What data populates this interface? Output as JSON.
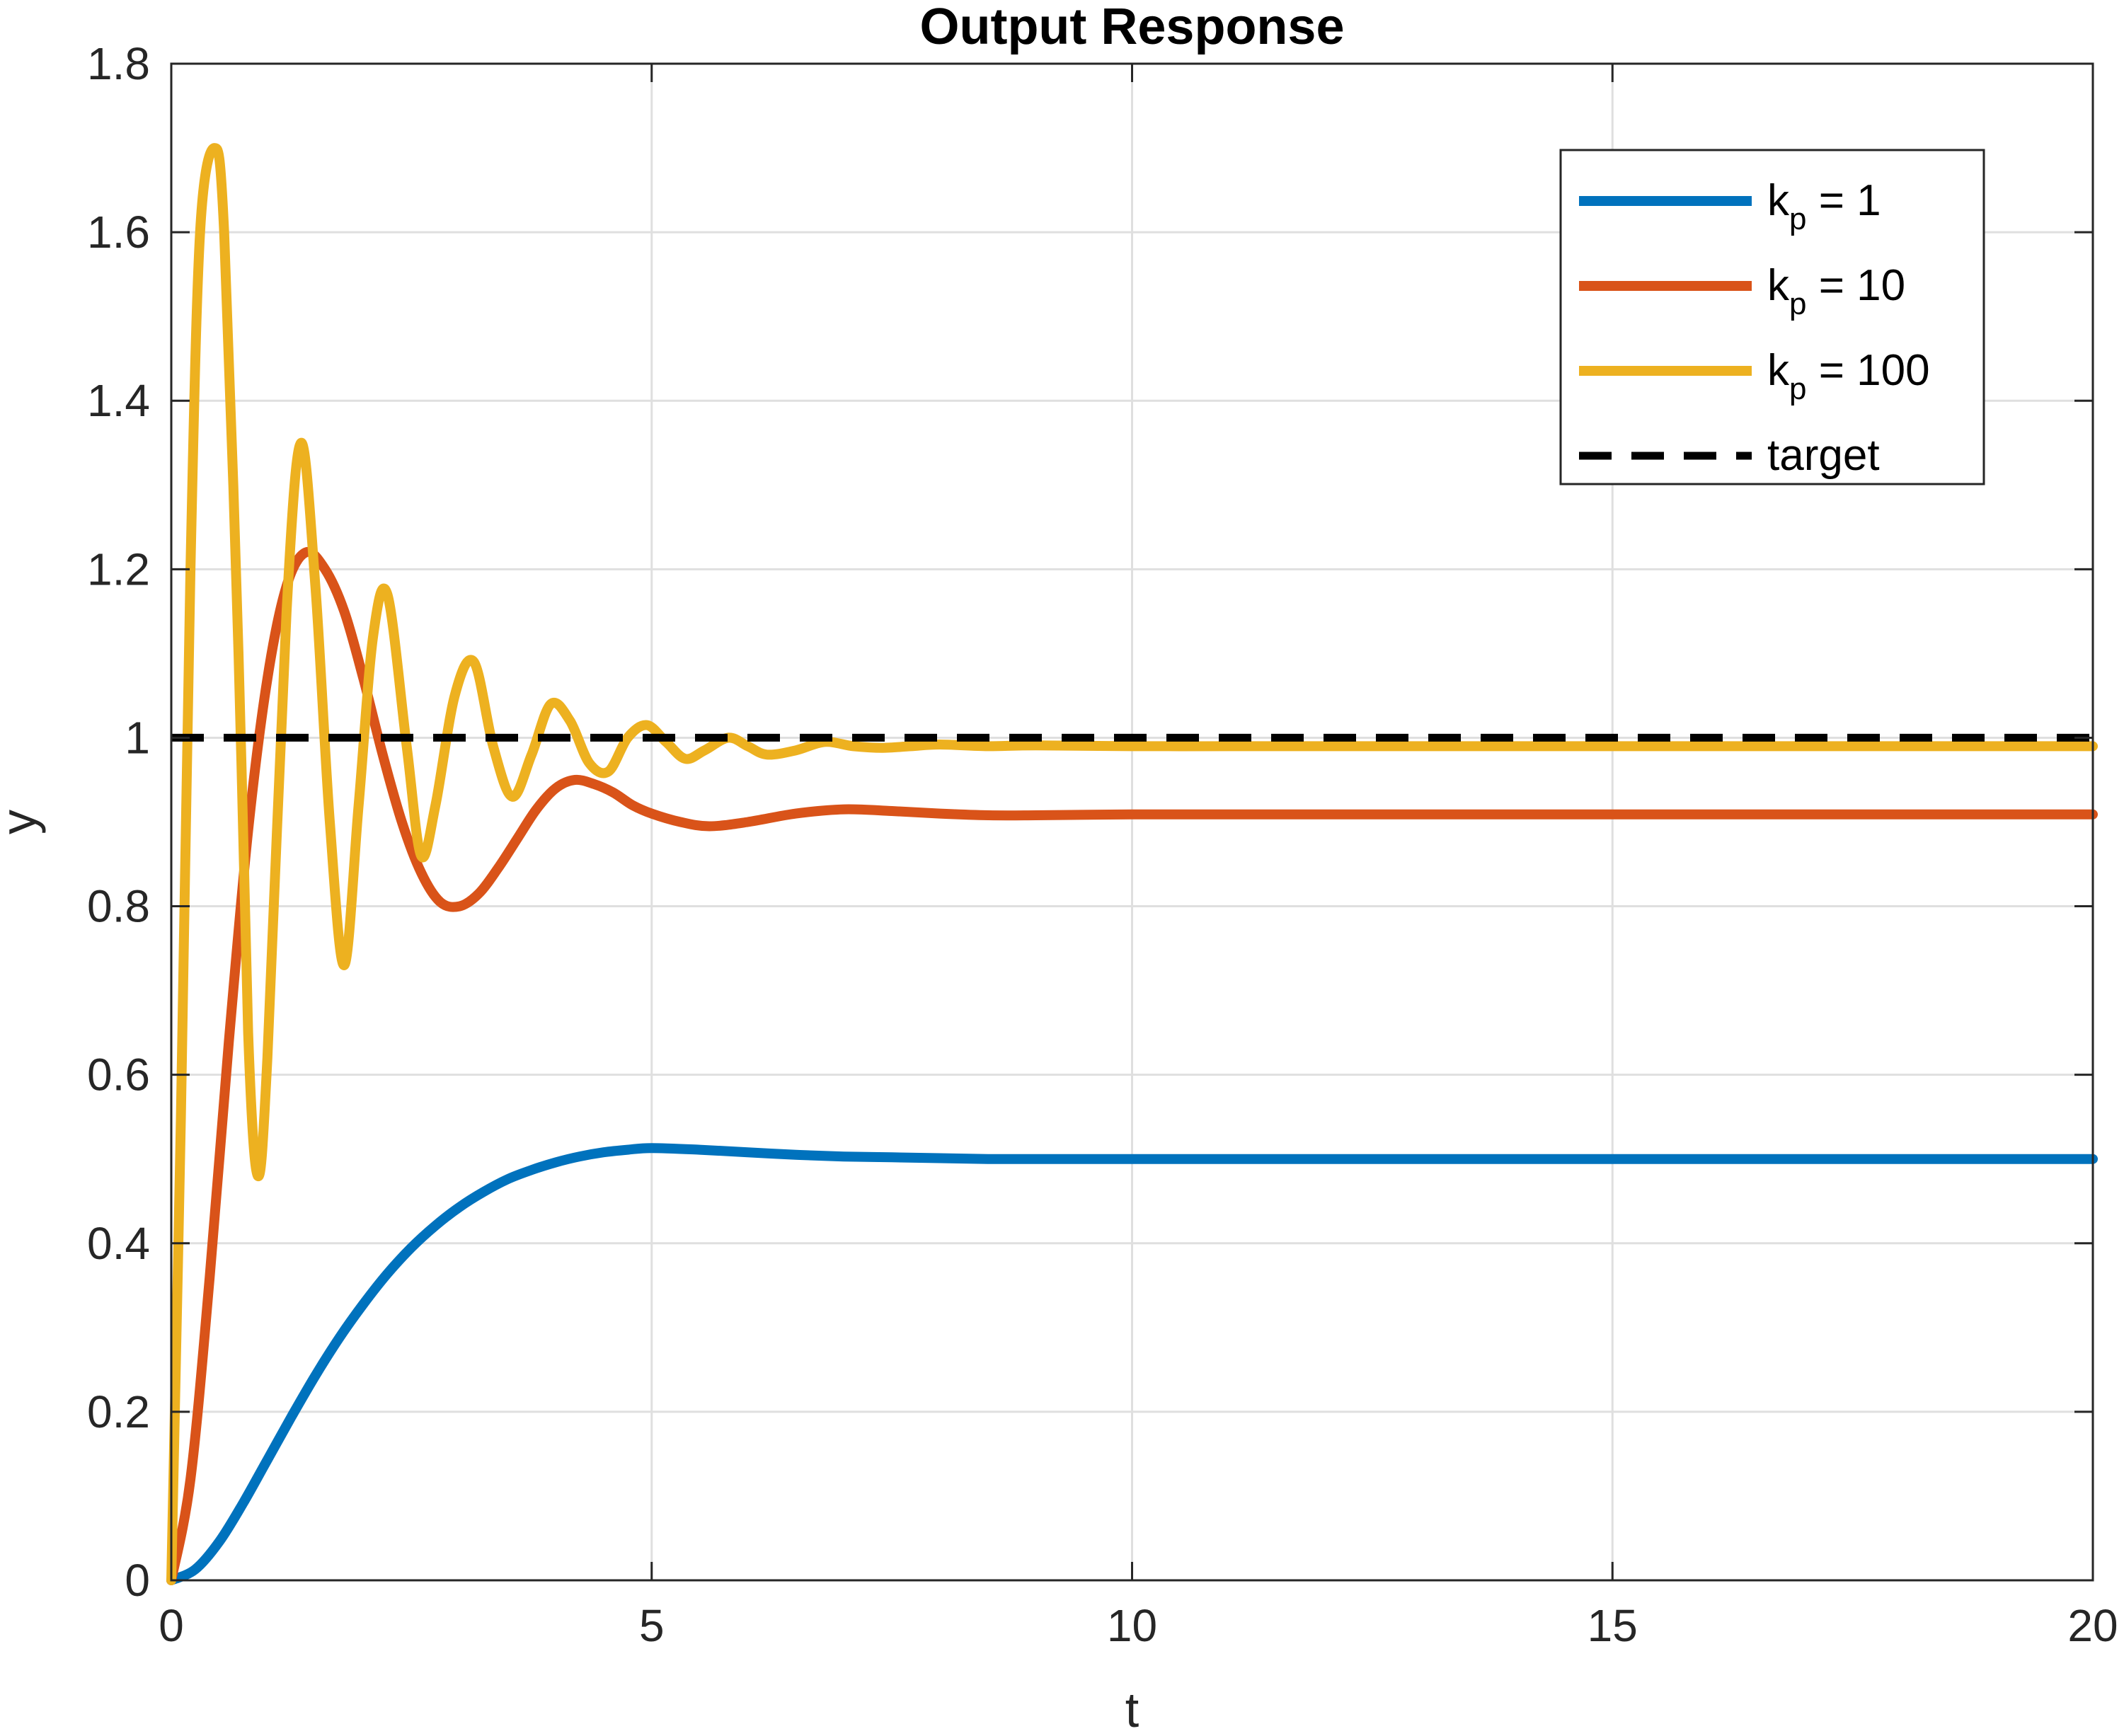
{
  "chart_data": {
    "type": "line",
    "title": "Output Response",
    "xlabel": "t",
    "ylabel": "y",
    "xlim": [
      0,
      20
    ],
    "ylim": [
      0,
      1.8
    ],
    "xticks": [
      0,
      5,
      10,
      15,
      20
    ],
    "xtick_labels": [
      "0",
      "5",
      "10",
      "15",
      "20"
    ],
    "yticks": [
      0,
      0.2,
      0.4,
      0.6,
      0.8,
      1.0,
      1.2,
      1.4,
      1.6,
      1.8
    ],
    "ytick_labels": [
      "0",
      "0.2",
      "0.4",
      "0.6",
      "0.8",
      "1",
      "1.2",
      "1.4",
      "1.6",
      "1.8"
    ],
    "grid": true,
    "legend_position": "top-right",
    "series": [
      {
        "legend_main": "k",
        "legend_sub": "p",
        "legend_rest": " = 1",
        "color": "#0072BD",
        "style": "solid",
        "x": [
          0,
          0.25,
          0.5,
          0.75,
          1.0,
          1.25,
          1.5,
          1.75,
          2.0,
          2.25,
          2.5,
          2.75,
          3.0,
          3.25,
          3.5,
          3.75,
          4.0,
          4.25,
          4.5,
          4.75,
          5.0,
          5.5,
          6.0,
          6.5,
          7.0,
          7.5,
          8.0,
          8.5,
          9.0,
          10.0,
          11.0,
          12.0,
          13.0,
          14.0,
          15.0,
          16.0,
          17.0,
          18.0,
          19.0,
          20.0
        ],
        "y": [
          0,
          0.013,
          0.046,
          0.092,
          0.143,
          0.194,
          0.243,
          0.288,
          0.328,
          0.364,
          0.395,
          0.421,
          0.443,
          0.461,
          0.476,
          0.487,
          0.496,
          0.503,
          0.508,
          0.511,
          0.513,
          0.511,
          0.508,
          0.505,
          0.503,
          0.502,
          0.501,
          0.5,
          0.5,
          0.5,
          0.5,
          0.5,
          0.5,
          0.5,
          0.5,
          0.5,
          0.5,
          0.5,
          0.5,
          0.5
        ]
      },
      {
        "legend_main": "k",
        "legend_sub": "p",
        "legend_rest": " = 10",
        "color": "#D95319",
        "style": "solid",
        "x": [
          0,
          0.2,
          0.4,
          0.6,
          0.8,
          1.0,
          1.2,
          1.4,
          1.6,
          1.8,
          2.0,
          2.2,
          2.4,
          2.6,
          2.8,
          3.0,
          3.2,
          3.4,
          3.6,
          3.8,
          4.0,
          4.2,
          4.4,
          4.6,
          4.8,
          5.0,
          5.3,
          5.6,
          6.0,
          6.5,
          7.0,
          7.5,
          8.0,
          8.5,
          9.0,
          10.0,
          11.0,
          12.0,
          14.0,
          16.0,
          18.0,
          20.0
        ],
        "y": [
          0,
          0.12,
          0.36,
          0.64,
          0.89,
          1.07,
          1.18,
          1.22,
          1.2,
          1.15,
          1.07,
          0.98,
          0.9,
          0.84,
          0.805,
          0.8,
          0.815,
          0.845,
          0.88,
          0.915,
          0.94,
          0.95,
          0.945,
          0.935,
          0.92,
          0.91,
          0.9,
          0.895,
          0.9,
          0.91,
          0.915,
          0.913,
          0.91,
          0.908,
          0.908,
          0.909,
          0.909,
          0.909,
          0.909,
          0.909,
          0.909,
          0.909
        ]
      },
      {
        "legend_main": "k",
        "legend_sub": "p",
        "legend_rest": " = 100",
        "color": "#EDB120",
        "style": "solid",
        "x": [
          0,
          0.1,
          0.2,
          0.3,
          0.45,
          0.55,
          0.7,
          0.8,
          0.9,
          1.0,
          1.2,
          1.35,
          1.5,
          1.65,
          1.8,
          1.95,
          2.1,
          2.25,
          2.45,
          2.6,
          2.75,
          2.95,
          3.15,
          3.35,
          3.55,
          3.75,
          3.95,
          4.15,
          4.35,
          4.55,
          4.75,
          4.95,
          5.15,
          5.35,
          5.55,
          5.8,
          6.0,
          6.2,
          6.5,
          6.8,
          7.1,
          7.4,
          7.7,
          8.0,
          8.5,
          9.0,
          10.0,
          11.0,
          12.0,
          14.0,
          16.0,
          18.0,
          20.0
        ],
        "y": [
          0,
          0.55,
          1.2,
          1.6,
          1.7,
          1.6,
          1.1,
          0.65,
          0.48,
          0.62,
          1.15,
          1.35,
          1.18,
          0.9,
          0.73,
          0.92,
          1.12,
          1.17,
          0.99,
          0.86,
          0.92,
          1.05,
          1.09,
          0.99,
          0.93,
          0.98,
          1.04,
          1.02,
          0.97,
          0.96,
          1.0,
          1.015,
          0.995,
          0.975,
          0.985,
          1.0,
          0.99,
          0.98,
          0.985,
          0.995,
          0.99,
          0.988,
          0.99,
          0.992,
          0.99,
          0.991,
          0.99,
          0.99,
          0.99,
          0.99,
          0.99,
          0.99,
          0.99
        ]
      },
      {
        "legend_main": "target",
        "legend_sub": "",
        "legend_rest": "",
        "color": "#000000",
        "style": "dashed",
        "x": [
          0,
          20
        ],
        "y": [
          1,
          1
        ]
      }
    ]
  }
}
